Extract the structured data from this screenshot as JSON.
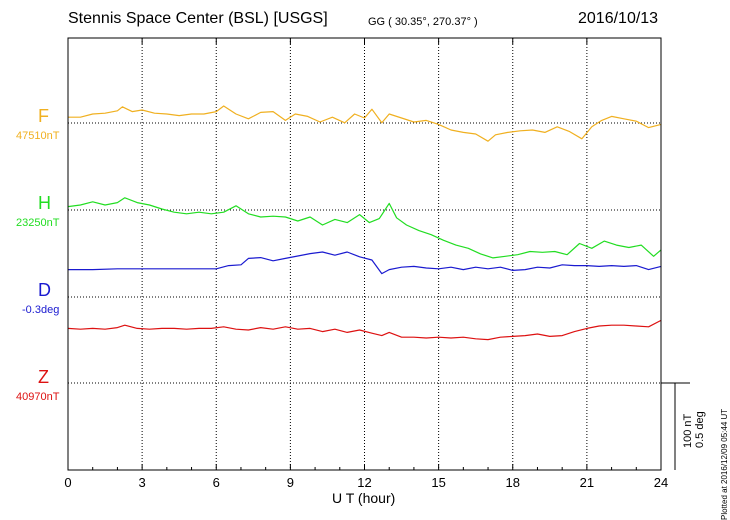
{
  "header": {
    "title": "Stennis Space Center (BSL)  [USGS]",
    "coords": "GG ( 30.35°, 270.37° )",
    "date": "2016/10/13"
  },
  "footer": {
    "plotted": "Plotted at 2016/12/09 05:44 UT",
    "scale_nt": "100 nT",
    "scale_deg": "0.5 deg"
  },
  "chart_data": {
    "type": "line",
    "xlabel": "U T (hour)",
    "xlim": [
      0,
      24
    ],
    "xticks": [
      "0",
      "3",
      "6",
      "9",
      "12",
      "15",
      "18",
      "21",
      "24"
    ],
    "grid": true,
    "units_per_scale_bar": {
      "nT": 100,
      "deg": 0.5
    },
    "series": [
      {
        "name": "F",
        "baseline_label": "47510nT",
        "color": "#f0b020",
        "x": [
          0,
          0.5,
          1,
          1.5,
          2,
          2.2,
          2.6,
          3,
          3.5,
          4,
          4.5,
          5,
          5.5,
          6,
          6.3,
          6.8,
          7.3,
          7.8,
          8.3,
          8.8,
          9.2,
          9.7,
          10.2,
          10.7,
          11.2,
          11.6,
          12,
          12.3,
          12.7,
          13,
          13.5,
          14,
          14.5,
          15,
          15.5,
          16,
          16.5,
          17,
          17.3,
          17.8,
          18.3,
          18.8,
          19.3,
          19.8,
          20.3,
          20.8,
          21.2,
          21.6,
          22,
          22.5,
          23,
          23.5,
          24
        ],
        "values": [
          89,
          89,
          85,
          84,
          81,
          76,
          82,
          80,
          84,
          85,
          87,
          85,
          85,
          82,
          75,
          85,
          91,
          83,
          82,
          93,
          85,
          88,
          95,
          89,
          96,
          85,
          90,
          79,
          96,
          85,
          90,
          95,
          93,
          98,
          105,
          108,
          110,
          119,
          111,
          108,
          106,
          105,
          108,
          101,
          107,
          116,
          101,
          93,
          88,
          91,
          94,
          102,
          98
        ]
      },
      {
        "name": "H",
        "baseline_label": "23250nT",
        "color": "#22dd22",
        "x": [
          0,
          0.5,
          1,
          1.5,
          2,
          2.3,
          2.8,
          3.3,
          3.8,
          4.3,
          4.8,
          5.3,
          5.8,
          6.3,
          6.8,
          7.3,
          7.8,
          8.3,
          8.8,
          9.3,
          9.8,
          10.3,
          10.8,
          11.3,
          11.8,
          12.2,
          12.6,
          13,
          13.3,
          13.7,
          14.2,
          14.7,
          15.2,
          15.7,
          16.2,
          16.7,
          17.2,
          17.7,
          18.2,
          18.7,
          19.2,
          19.7,
          20.2,
          20.7,
          21.2,
          21.7,
          22.2,
          22.7,
          23.2,
          23.7,
          24
        ],
        "values": [
          92,
          90,
          86,
          90,
          87,
          81,
          87,
          90,
          95,
          99,
          101,
          99,
          101,
          99,
          91,
          101,
          105,
          104,
          105,
          110,
          105,
          115,
          108,
          112,
          102,
          112,
          107,
          88,
          106,
          115,
          122,
          127,
          134,
          140,
          144,
          151,
          156,
          154,
          152,
          148,
          149,
          148,
          152,
          138,
          144,
          135,
          140,
          143,
          140,
          154,
          146
        ]
      },
      {
        "name": "D",
        "baseline_label": "-0.3deg",
        "color": "#1a1ad0",
        "x": [
          0,
          1,
          2,
          3,
          4,
          5,
          6,
          6.5,
          7,
          7.3,
          7.8,
          8.3,
          8.8,
          9.3,
          9.8,
          10.3,
          10.8,
          11.3,
          11.8,
          12.3,
          12.7,
          13,
          13.5,
          14,
          14.5,
          15,
          15.5,
          16,
          16.5,
          17,
          17.5,
          18,
          18.5,
          19,
          19.5,
          20,
          20.5,
          21,
          21.5,
          22,
          22.5,
          23,
          23.5,
          24
        ],
        "values": [
          62,
          62,
          61,
          61,
          61,
          61,
          61,
          57,
          56,
          48,
          47,
          51,
          48,
          45,
          42,
          40,
          44,
          40,
          46,
          50,
          67,
          62,
          59,
          58,
          60,
          61,
          59,
          62,
          59,
          61,
          59,
          63,
          62,
          59,
          60,
          56,
          57,
          57,
          58,
          57,
          58,
          57,
          62,
          58
        ]
      },
      {
        "name": "Z",
        "baseline_label": "40970nT",
        "color": "#dd1111",
        "x": [
          0,
          0.5,
          1,
          1.5,
          2,
          2.3,
          2.8,
          3.3,
          3.8,
          4.3,
          4.8,
          5.3,
          5.8,
          6.3,
          6.8,
          7.3,
          7.8,
          8.3,
          8.8,
          9.3,
          9.8,
          10.3,
          10.8,
          11.3,
          11.8,
          12.3,
          12.7,
          13,
          13.5,
          14,
          14.5,
          15,
          15.5,
          16,
          16.5,
          17,
          17.5,
          18,
          18.5,
          19,
          19.5,
          20,
          20.5,
          21,
          21.5,
          22,
          22.5,
          23,
          23.5,
          24
        ],
        "values": [
          28,
          29,
          28,
          29,
          27,
          24,
          28,
          29,
          28,
          28,
          29,
          28,
          28,
          26,
          29,
          30,
          27,
          29,
          26,
          29,
          28,
          32,
          29,
          33,
          30,
          34,
          37,
          33,
          39,
          39,
          40,
          39,
          40,
          39,
          41,
          42,
          39,
          38,
          37,
          35,
          38,
          37,
          32,
          28,
          25,
          24,
          24,
          25,
          26,
          18
        ]
      }
    ]
  }
}
